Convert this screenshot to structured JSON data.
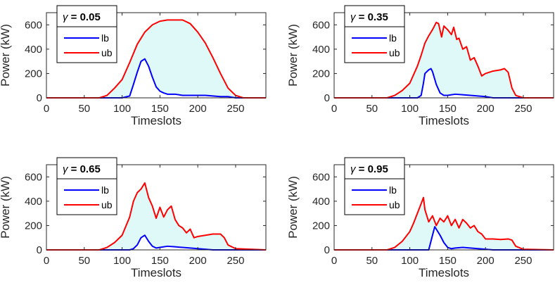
{
  "chart_data": [
    {
      "type": "area",
      "gamma": "0.05",
      "title_symbol": "γ",
      "xlabel": "Timeslots",
      "ylabel": "Power (kW)",
      "xlim": [
        0,
        290
      ],
      "ylim": [
        0,
        700
      ],
      "xticks": [
        0,
        50,
        100,
        150,
        200,
        250
      ],
      "yticks": [
        0,
        200,
        400,
        600
      ],
      "series": [
        {
          "name": "lb",
          "color": "#0000ff",
          "x": [
            0,
            80,
            100,
            110,
            115,
            120,
            125,
            130,
            135,
            140,
            145,
            150,
            155,
            160,
            170,
            180,
            190,
            200,
            210,
            220,
            230,
            240,
            250,
            260,
            290
          ],
          "y": [
            0,
            0,
            0,
            15,
            110,
            210,
            300,
            320,
            260,
            170,
            90,
            55,
            40,
            30,
            30,
            20,
            20,
            20,
            20,
            15,
            10,
            10,
            0,
            0,
            0
          ]
        },
        {
          "name": "ub",
          "color": "#ff0000",
          "x": [
            0,
            70,
            80,
            90,
            100,
            110,
            120,
            130,
            140,
            150,
            160,
            170,
            180,
            190,
            200,
            210,
            220,
            230,
            240,
            250,
            260,
            290
          ],
          "y": [
            0,
            0,
            20,
            80,
            150,
            290,
            440,
            540,
            600,
            630,
            640,
            640,
            640,
            610,
            540,
            450,
            330,
            200,
            80,
            20,
            0,
            0
          ]
        }
      ]
    },
    {
      "type": "area",
      "gamma": "0.35",
      "title_symbol": "γ",
      "xlabel": "Timeslots",
      "ylabel": "Power (kW)",
      "xlim": [
        0,
        290
      ],
      "ylim": [
        0,
        700
      ],
      "xticks": [
        0,
        50,
        100,
        150,
        200,
        250
      ],
      "yticks": [
        0,
        200,
        400,
        600
      ],
      "series": [
        {
          "name": "lb",
          "color": "#0000ff",
          "x": [
            0,
            110,
            115,
            118,
            120,
            125,
            128,
            130,
            135,
            140,
            145,
            150,
            160,
            170,
            180,
            190,
            200,
            210,
            290
          ],
          "y": [
            0,
            0,
            20,
            120,
            200,
            230,
            240,
            215,
            110,
            40,
            20,
            20,
            30,
            25,
            20,
            15,
            10,
            0,
            0
          ]
        },
        {
          "name": "ub",
          "color": "#ff0000",
          "x": [
            0,
            70,
            80,
            90,
            100,
            110,
            115,
            120,
            125,
            130,
            135,
            138,
            142,
            145,
            150,
            155,
            158,
            162,
            165,
            170,
            175,
            180,
            185,
            190,
            195,
            200,
            210,
            220,
            225,
            230,
            235,
            240,
            250,
            290
          ],
          "y": [
            0,
            0,
            20,
            60,
            120,
            260,
            350,
            450,
            510,
            560,
            620,
            610,
            500,
            590,
            560,
            520,
            580,
            480,
            490,
            400,
            420,
            310,
            330,
            260,
            180,
            200,
            220,
            230,
            240,
            210,
            80,
            20,
            0,
            0
          ]
        }
      ]
    },
    {
      "type": "area",
      "gamma": "0.65",
      "title_symbol": "γ",
      "xlabel": "Timeslots",
      "ylabel": "Power (kW)",
      "xlim": [
        0,
        290
      ],
      "ylim": [
        0,
        700
      ],
      "xticks": [
        0,
        50,
        100,
        150,
        200,
        250
      ],
      "yticks": [
        0,
        200,
        400,
        600
      ],
      "series": [
        {
          "name": "lb",
          "color": "#0000ff",
          "x": [
            0,
            110,
            115,
            120,
            125,
            130,
            135,
            140,
            145,
            150,
            160,
            170,
            180,
            190,
            200,
            210,
            220,
            290
          ],
          "y": [
            0,
            0,
            10,
            40,
            100,
            120,
            70,
            30,
            15,
            20,
            30,
            25,
            20,
            15,
            10,
            5,
            0,
            0
          ]
        },
        {
          "name": "ub",
          "color": "#ff0000",
          "x": [
            0,
            70,
            80,
            90,
            100,
            110,
            115,
            120,
            125,
            130,
            135,
            140,
            145,
            150,
            155,
            160,
            165,
            170,
            175,
            180,
            185,
            190,
            195,
            200,
            210,
            220,
            230,
            235,
            240,
            250,
            290
          ],
          "y": [
            0,
            0,
            20,
            60,
            120,
            270,
            400,
            470,
            500,
            550,
            430,
            360,
            260,
            350,
            270,
            330,
            360,
            250,
            200,
            180,
            140,
            170,
            100,
            110,
            120,
            130,
            130,
            100,
            40,
            10,
            0
          ]
        }
      ]
    },
    {
      "type": "area",
      "gamma": "0.95",
      "title_symbol": "γ",
      "xlabel": "Timeslots",
      "ylabel": "Power (kW)",
      "xlim": [
        0,
        290
      ],
      "ylim": [
        0,
        700
      ],
      "xticks": [
        0,
        50,
        100,
        150,
        200,
        250
      ],
      "yticks": [
        0,
        200,
        400,
        600
      ],
      "series": [
        {
          "name": "lb",
          "color": "#0000ff",
          "x": [
            0,
            125,
            130,
            133,
            135,
            140,
            145,
            150,
            155,
            160,
            170,
            180,
            190,
            200,
            210,
            290
          ],
          "y": [
            0,
            0,
            120,
            190,
            170,
            120,
            60,
            20,
            10,
            15,
            20,
            15,
            10,
            5,
            0,
            0
          ]
        },
        {
          "name": "ub",
          "color": "#ff0000",
          "x": [
            0,
            70,
            80,
            90,
            100,
            105,
            110,
            115,
            118,
            120,
            125,
            130,
            135,
            140,
            145,
            150,
            155,
            160,
            165,
            170,
            175,
            180,
            185,
            190,
            195,
            200,
            210,
            220,
            230,
            235,
            240,
            250,
            290
          ],
          "y": [
            0,
            0,
            20,
            70,
            150,
            220,
            300,
            380,
            430,
            330,
            230,
            280,
            200,
            260,
            230,
            280,
            200,
            250,
            180,
            250,
            220,
            180,
            200,
            150,
            130,
            90,
            90,
            85,
            90,
            80,
            30,
            5,
            0
          ]
        }
      ]
    }
  ]
}
